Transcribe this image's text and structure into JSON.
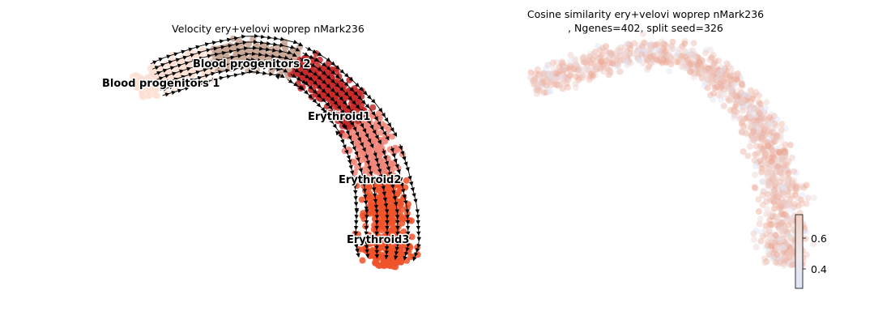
{
  "chart_data": [
    {
      "type": "scatter",
      "subtype": "embedding-velocity-stream",
      "title": "Velocity ery+velovi woprep nMark236",
      "clusters": [
        {
          "name": "Blood progenitors 1",
          "color": "#fbe0d3"
        },
        {
          "name": "Blood progenitors 2",
          "color": "#c9a797"
        },
        {
          "name": "Erythroid1",
          "color": "#c62a2a"
        },
        {
          "name": "Erythroid2",
          "color": "#f1877a"
        },
        {
          "name": "Erythroid3",
          "color": "#f0522a"
        }
      ],
      "streamlines": true,
      "grid": false,
      "axes_visible": false
    },
    {
      "type": "scatter",
      "subtype": "embedding-colored-by-value",
      "title_line1": "Cosine similarity ery+velovi woprep nMark236",
      "title_line2": ", Ngenes=402, split seed=326",
      "colormap": "coolwarm",
      "colorbar": {
        "ticks": [
          {
            "value": 0.4,
            "label": "0.4"
          },
          {
            "value": 0.6,
            "label": "0.6"
          }
        ],
        "range": [
          0.28,
          0.75
        ]
      },
      "grid": false,
      "axes_visible": false
    }
  ]
}
